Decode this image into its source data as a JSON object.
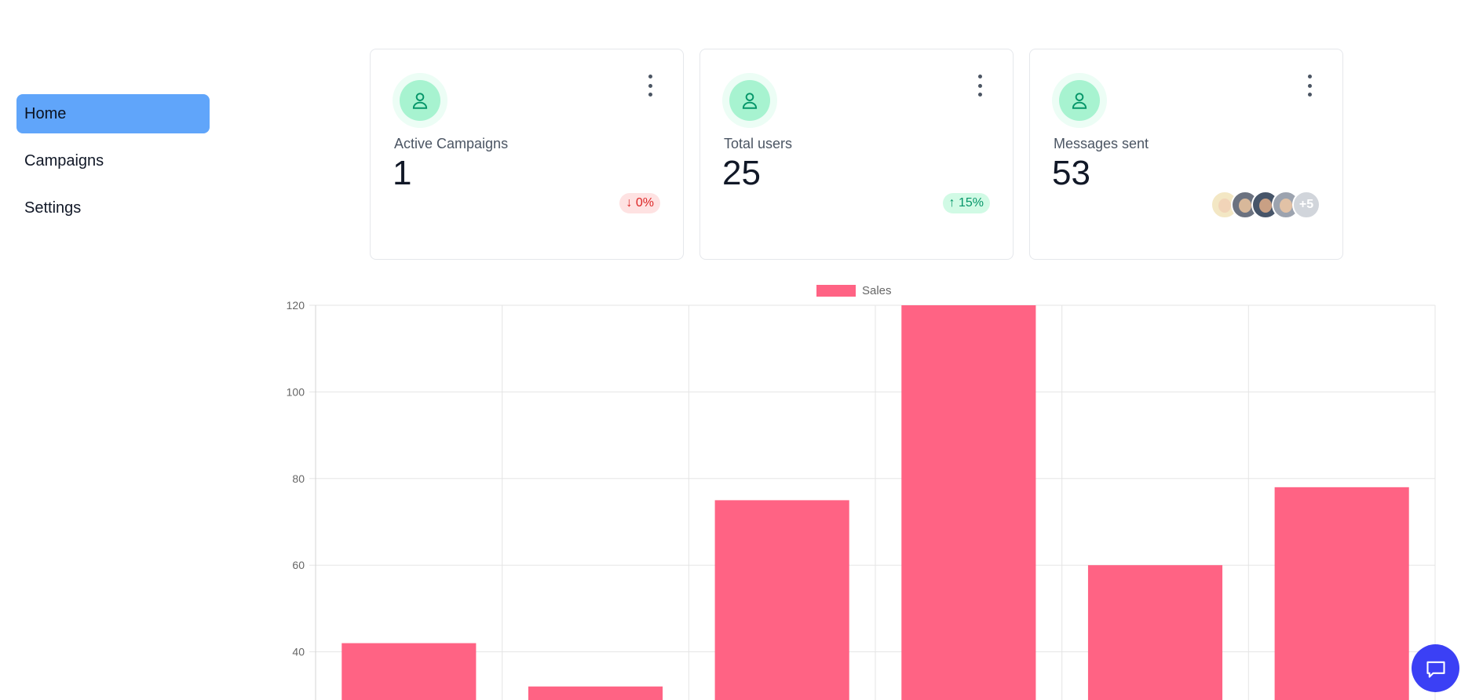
{
  "sidebar": {
    "items": [
      {
        "label": "Home",
        "active": true
      },
      {
        "label": "Campaigns",
        "active": false
      },
      {
        "label": "Settings",
        "active": false
      }
    ]
  },
  "stats": [
    {
      "label": "Active Campaigns",
      "value": "1",
      "badge": "↓ 0%",
      "badge_type": "down",
      "icon": "user-icon"
    },
    {
      "label": "Total users",
      "value": "25",
      "badge": "↑ 15%",
      "badge_type": "up",
      "icon": "user-icon"
    },
    {
      "label": "Messages sent",
      "value": "53",
      "extra_avatars": "+5",
      "icon": "user-icon"
    }
  ],
  "colors": {
    "accent": "#60a5fa",
    "bar": "#ff6384",
    "success_bg": "#d1fae5",
    "success_text": "#059669",
    "danger_bg": "#fee2e2",
    "danger_text": "#dc2626",
    "chat": "#3b40f5"
  },
  "chart_data": {
    "type": "bar",
    "legend": "Sales",
    "series": [
      {
        "name": "Sales",
        "values": [
          42,
          32,
          75,
          120,
          60,
          78
        ]
      }
    ],
    "y_ticks": [
      "120",
      "100",
      "80",
      "60",
      "40"
    ],
    "ylim": [
      30,
      120
    ],
    "grid": true,
    "legend_position": "top"
  }
}
